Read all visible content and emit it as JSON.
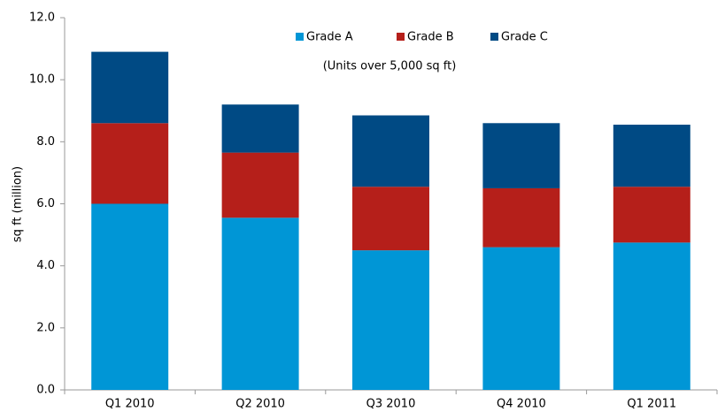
{
  "chart_data": {
    "type": "stacked_bar",
    "subtitle": "(Units over 5,000 sq ft)",
    "y_label": "sq ft (million)",
    "categories": [
      "Q1 2010",
      "Q2 2010",
      "Q3 2010",
      "Q4 2010",
      "Q1 2011"
    ],
    "series": [
      {
        "name": "Grade A",
        "color": "#0096d6",
        "values": [
          6.0,
          5.55,
          4.5,
          4.6,
          4.75
        ]
      },
      {
        "name": "Grade B",
        "color": "#b51f1a",
        "values": [
          2.6,
          2.1,
          2.05,
          1.9,
          1.8
        ]
      },
      {
        "name": "Grade C",
        "color": "#004a84",
        "values": [
          2.3,
          1.55,
          2.3,
          2.1,
          2.0
        ]
      }
    ],
    "ylim": [
      0,
      12
    ],
    "yticks": [
      {
        "value": 0,
        "label": "0.0"
      },
      {
        "value": 2,
        "label": "2.0"
      },
      {
        "value": 4,
        "label": "4.0"
      },
      {
        "value": 6,
        "label": "6.0"
      },
      {
        "value": 8,
        "label": "8.0"
      },
      {
        "value": 10,
        "label": "10.0"
      },
      {
        "value": 12,
        "label": "12.0"
      }
    ],
    "grid": false
  }
}
